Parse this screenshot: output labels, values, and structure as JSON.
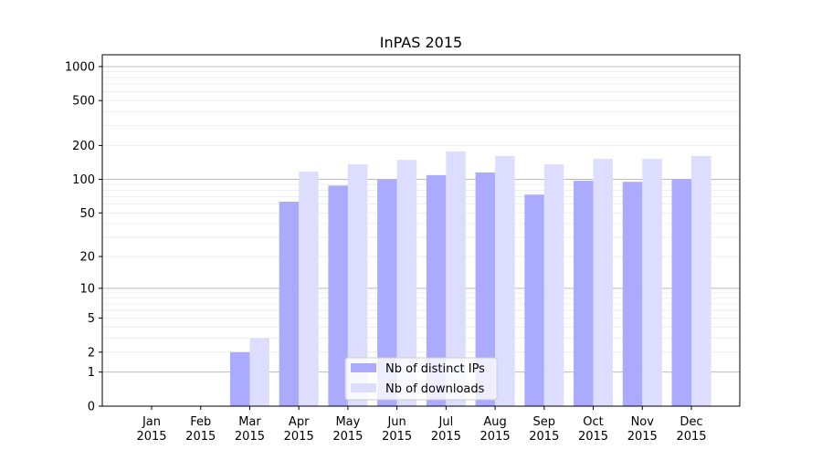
{
  "chart_data": {
    "type": "bar",
    "title": "InPAS 2015",
    "xlabel": "",
    "ylabel": "",
    "yscale": "log10(1+y)",
    "ylim": [
      0,
      1200
    ],
    "yticks": [
      0,
      1,
      2,
      5,
      10,
      20,
      50,
      100,
      200,
      500,
      1000
    ],
    "grid": true,
    "legend_position": "lower center",
    "categories": [
      "Jan\n2015",
      "Feb\n2015",
      "Mar\n2015",
      "Apr\n2015",
      "May\n2015",
      "Jun\n2015",
      "Jul\n2015",
      "Aug\n2015",
      "Sep\n2015",
      "Oct\n2015",
      "Nov\n2015",
      "Dec\n2015"
    ],
    "series": [
      {
        "name": "Nb of distinct IPs",
        "color": "#aaaaff",
        "values": [
          0,
          0,
          2,
          63,
          88,
          99,
          109,
          115,
          73,
          97,
          95,
          100
        ]
      },
      {
        "name": "Nb of downloads",
        "color": "#ddddff",
        "values": [
          0,
          0,
          3,
          117,
          136,
          149,
          177,
          161,
          136,
          152,
          152,
          161
        ]
      }
    ]
  }
}
